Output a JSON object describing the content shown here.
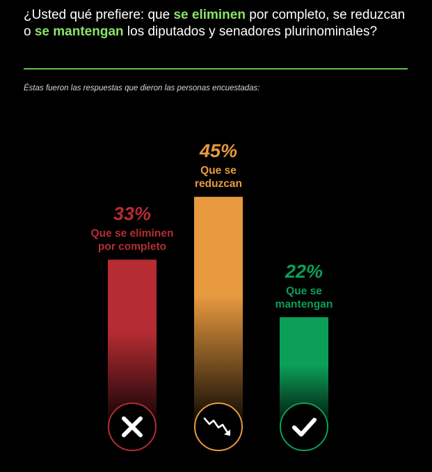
{
  "question": {
    "part1": "¿Usted qué prefiere: que ",
    "hl1": "se eliminen",
    "part2": " por completo, se reduzcan o ",
    "hl2": "se mantengan",
    "part3": " los diputados y senadores plurinominales?"
  },
  "subtitle": "Éstas fueron las respuestas que dieron las personas encuestadas:",
  "colors": {
    "highlight": "#8be36a",
    "divider": "#5fc24a"
  },
  "chart_data": {
    "type": "bar",
    "title": "",
    "xlabel": "",
    "ylabel": "",
    "ylim": [
      0,
      45
    ],
    "bars": [
      {
        "value_label": "33%",
        "value": 33,
        "label_lines": [
          "Que se eliminen",
          "por completo"
        ],
        "color": "#b52c33",
        "icon": "x-icon"
      },
      {
        "value_label": "45%",
        "value": 45,
        "label_lines": [
          "Que se",
          "reduzcan"
        ],
        "color": "#e89a3f",
        "icon": "trend-down-arrow-icon"
      },
      {
        "value_label": "22%",
        "value": 22,
        "label_lines": [
          "Que se",
          "mantengan"
        ],
        "color": "#0b9f57",
        "icon": "check-icon"
      }
    ]
  }
}
